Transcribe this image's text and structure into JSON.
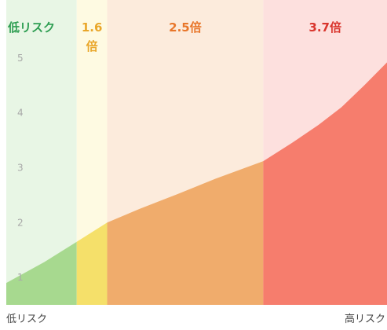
{
  "chart_data": {
    "type": "area",
    "title": "",
    "xlabel": "",
    "ylabel": "",
    "x_axis": {
      "start_label": "低リスク",
      "end_label": "高リスク",
      "range": [
        0,
        100
      ]
    },
    "y_axis": {
      "range": [
        0.5,
        5.8
      ],
      "ticks": [
        "1",
        "2",
        "3",
        "4",
        "5"
      ]
    },
    "zones": [
      {
        "name": "low",
        "x_start": 0,
        "x_end": 18.5,
        "label_lines": [
          "低リスク"
        ],
        "label_color": "#2e9e52",
        "background_color": "#e8f6e5",
        "fill_color": "#a7d98f"
      },
      {
        "name": "1.6x",
        "x_start": 18.5,
        "x_end": 26.5,
        "label_lines": [
          "1.6",
          "倍"
        ],
        "label_color": "#e9a62a",
        "background_color": "#fefae2",
        "fill_color": "#f5e06a"
      },
      {
        "name": "2.5x",
        "x_start": 26.5,
        "x_end": 67.5,
        "label_lines": [
          "2.5倍"
        ],
        "label_color": "#e8762a",
        "background_color": "#fcebdc",
        "fill_color": "#f0ac6c"
      },
      {
        "name": "3.7x",
        "x_start": 67.5,
        "x_end": 100,
        "label_lines": [
          "3.7倍"
        ],
        "label_color": "#d9352d",
        "background_color": "#fde0de",
        "fill_color": "#f67d6d"
      }
    ],
    "curve": {
      "x": [
        0,
        10,
        18.5,
        26.5,
        35,
        45,
        55,
        67.5,
        75,
        82,
        88,
        94,
        100
      ],
      "y": [
        0.9,
        1.28,
        1.65,
        2.0,
        2.25,
        2.52,
        2.8,
        3.12,
        3.45,
        3.78,
        4.1,
        4.5,
        4.92
      ]
    }
  }
}
